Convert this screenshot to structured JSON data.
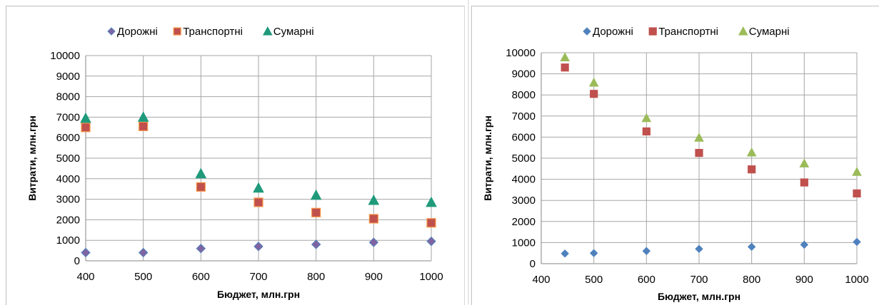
{
  "chart_data": [
    {
      "type": "scatter",
      "title": "",
      "xlabel": "Бюджет, млн.грн",
      "ylabel": "Витрати, млн.грн",
      "xlim": [
        400,
        1000
      ],
      "ylim": [
        0,
        10000
      ],
      "xticks": [
        "400",
        "500",
        "600",
        "700",
        "800",
        "900",
        "1000"
      ],
      "yticks": [
        "0",
        "1000",
        "2000",
        "3000",
        "4000",
        "5000",
        "6000",
        "7000",
        "8000",
        "9000",
        "10000"
      ],
      "grid": "vertical and horizontal",
      "legend_position": "top",
      "series": [
        {
          "name": "Дорожні",
          "marker": "diamond",
          "color": "#8064a2",
          "stroke": "#4f81bd",
          "points": [
            [
              400,
              400
            ],
            [
              500,
              400
            ],
            [
              600,
              600
            ],
            [
              700,
              700
            ],
            [
              800,
              800
            ],
            [
              900,
              900
            ],
            [
              1000,
              950
            ]
          ]
        },
        {
          "name": "Транспортні",
          "marker": "square",
          "color": "#c0504d",
          "stroke": "#f79646",
          "points": [
            [
              400,
              6500
            ],
            [
              500,
              6550
            ],
            [
              600,
              3600
            ],
            [
              700,
              2850
            ],
            [
              800,
              2350
            ],
            [
              900,
              2050
            ],
            [
              1000,
              1850
            ]
          ]
        },
        {
          "name": "Сумарні",
          "marker": "triangle",
          "color": "#1f9a7b",
          "stroke": "#1f9a7b",
          "points": [
            [
              400,
              6950
            ],
            [
              500,
              7000
            ],
            [
              600,
              4250
            ],
            [
              700,
              3550
            ],
            [
              800,
              3200
            ],
            [
              900,
              2950
            ],
            [
              1000,
              2850
            ]
          ]
        }
      ]
    },
    {
      "type": "scatter",
      "title": "",
      "xlabel": "Бюджет, млн.грн",
      "ylabel": "Витрати, млн.грн",
      "xlim": [
        400,
        1000
      ],
      "ylim": [
        0,
        10000
      ],
      "xticks": [
        "400",
        "500",
        "600",
        "700",
        "800",
        "900",
        "1000"
      ],
      "yticks": [
        "0",
        "1000",
        "2000",
        "3000",
        "4000",
        "5000",
        "6000",
        "7000",
        "8000",
        "9000",
        "10000"
      ],
      "grid": "vertical and horizontal",
      "legend_position": "top",
      "series": [
        {
          "name": "Дорожні",
          "marker": "diamond",
          "color": "#4f81bd",
          "stroke": "#4f81bd",
          "points": [
            [
              445,
              480
            ],
            [
              500,
              500
            ],
            [
              600,
              600
            ],
            [
              700,
              700
            ],
            [
              800,
              800
            ],
            [
              900,
              900
            ],
            [
              1000,
              1030
            ]
          ]
        },
        {
          "name": "Транспортні",
          "marker": "square",
          "color": "#c0504d",
          "stroke": "#c0504d",
          "points": [
            [
              445,
              9300
            ],
            [
              500,
              8050
            ],
            [
              600,
              6270
            ],
            [
              700,
              5250
            ],
            [
              800,
              4470
            ],
            [
              900,
              3850
            ],
            [
              1000,
              3330
            ]
          ]
        },
        {
          "name": "Сумарні",
          "marker": "triangle",
          "color": "#9bbb59",
          "stroke": "#9bbb59",
          "points": [
            [
              445,
              9780
            ],
            [
              500,
              8580
            ],
            [
              600,
              6900
            ],
            [
              700,
              5970
            ],
            [
              800,
              5270
            ],
            [
              900,
              4750
            ],
            [
              1000,
              4350
            ]
          ]
        }
      ]
    }
  ]
}
